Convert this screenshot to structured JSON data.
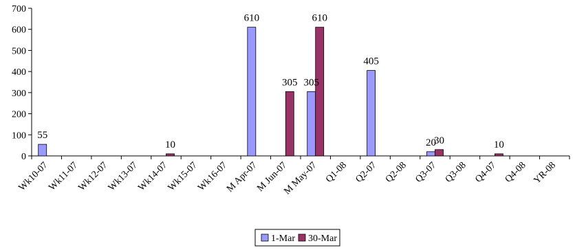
{
  "chart_data": {
    "type": "bar",
    "title": "",
    "xlabel": "",
    "ylabel": "",
    "ylim": [
      0,
      700
    ],
    "yticks": [
      0,
      100,
      200,
      300,
      400,
      500,
      600,
      700
    ],
    "grid": false,
    "legend_position": "bottom-center",
    "categories": [
      "Wk10-07",
      "Wk11-07",
      "Wk12-07",
      "Wk13-07",
      "Wk14-07",
      "Wk15-07",
      "Wk16-07",
      "M Apr-07",
      "M Jun-07",
      "M May-07",
      "Q1-08",
      "Q2-07",
      "Q2-08",
      "Q3-07",
      "Q3-08",
      "Q4-07",
      "Q4-08",
      "YR-08"
    ],
    "series": [
      {
        "name": "1-Mar",
        "color": "#9999ff",
        "values": [
          55,
          null,
          null,
          null,
          null,
          null,
          null,
          610,
          null,
          305,
          null,
          405,
          null,
          20,
          null,
          null,
          null,
          null
        ],
        "labels": [
          "55",
          "",
          "",
          "",
          "",
          "",
          "",
          "610",
          "",
          "305",
          "",
          "405",
          "",
          "20",
          "",
          "",
          "",
          ""
        ]
      },
      {
        "name": "30-Mar",
        "color": "#993366",
        "values": [
          null,
          null,
          null,
          null,
          10,
          null,
          null,
          null,
          305,
          610,
          null,
          null,
          null,
          30,
          null,
          10,
          null,
          null
        ],
        "labels": [
          "",
          "",
          "",
          "",
          "10",
          "",
          "",
          "",
          "305",
          "610",
          "",
          "",
          "",
          "30",
          "",
          "10",
          "",
          ""
        ]
      }
    ]
  }
}
